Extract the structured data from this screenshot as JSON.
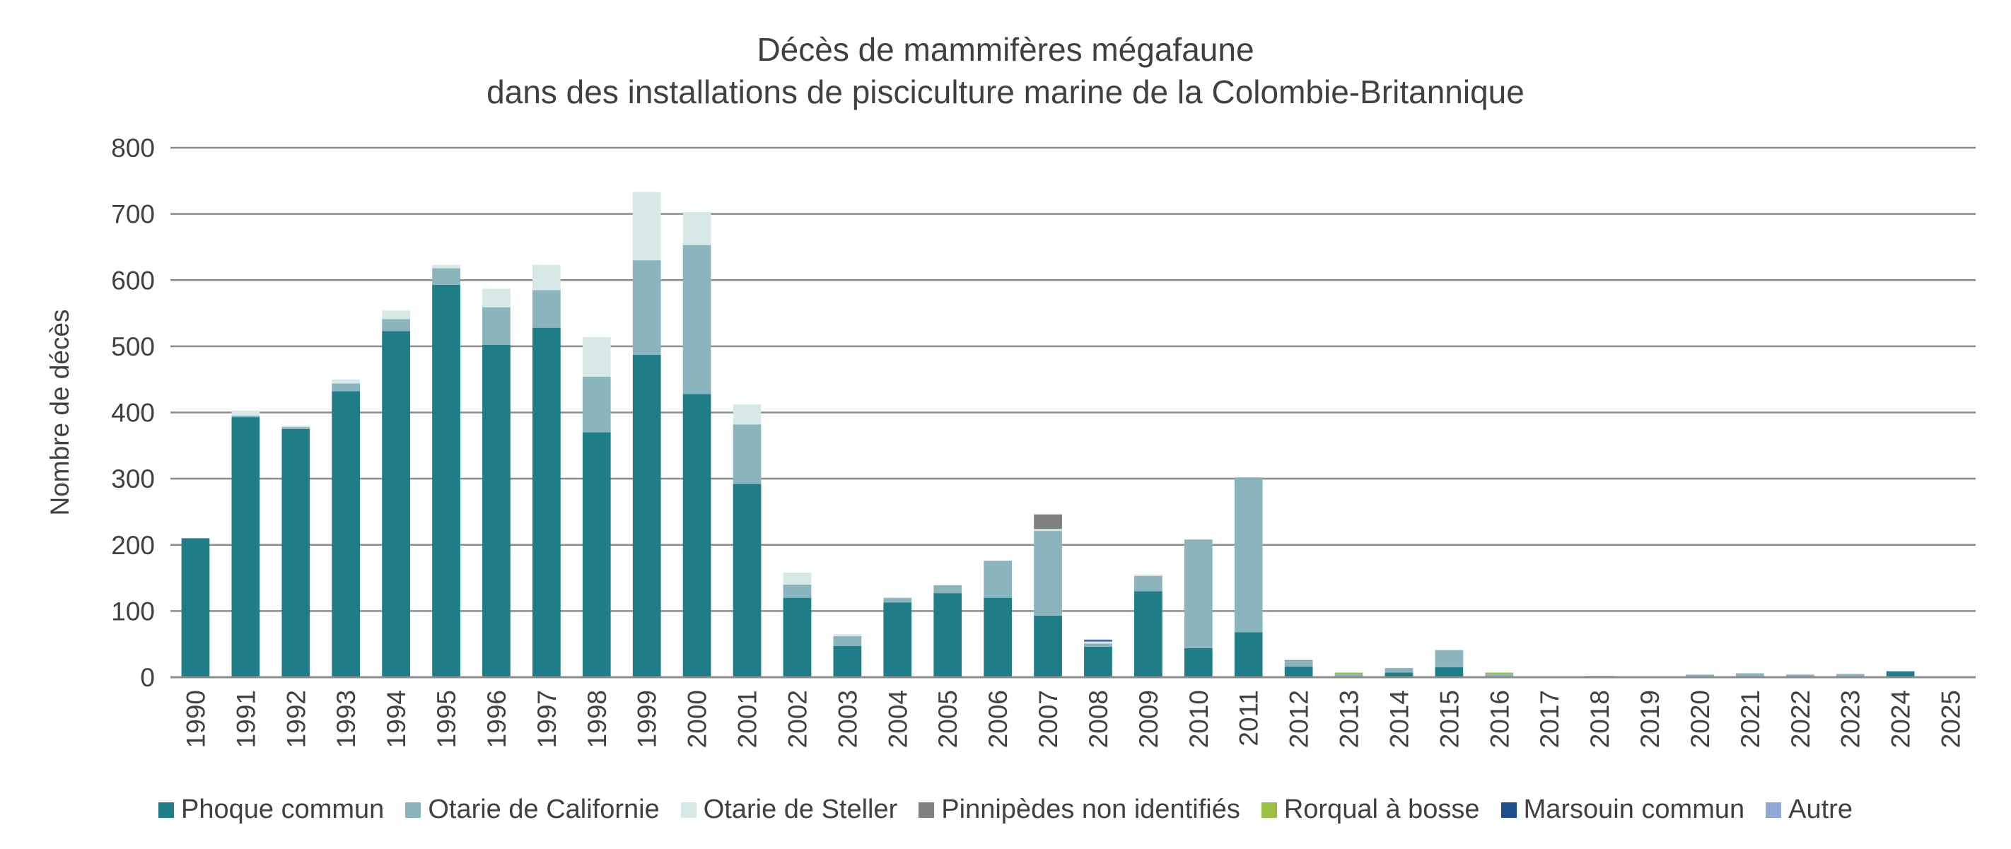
{
  "chart_data": {
    "type": "bar",
    "stacked": true,
    "title": "Décès de mammifères mégafaune",
    "subtitle": "dans des installations de pisciculture marine de la Colombie-Britannique",
    "xlabel": "",
    "ylabel": "Nombre de décès",
    "ylim": [
      0,
      800
    ],
    "yticks": [
      0,
      100,
      200,
      300,
      400,
      500,
      600,
      700,
      800
    ],
    "grid": true,
    "legend_position": "bottom",
    "categories": [
      "1990",
      "1991",
      "1992",
      "1993",
      "1994",
      "1995",
      "1996",
      "1997",
      "1998",
      "1999",
      "2000",
      "2001",
      "2002",
      "2003",
      "2004",
      "2005",
      "2006",
      "2007",
      "2008",
      "2009",
      "2010",
      "2011",
      "2012",
      "2013",
      "2014",
      "2015",
      "2016",
      "2017",
      "2018",
      "2019",
      "2020",
      "2021",
      "2022",
      "2023",
      "2024",
      "2025"
    ],
    "series": [
      {
        "name": "Phoque commun",
        "color": "#1e7d87",
        "values": [
          210,
          393,
          375,
          432,
          523,
          593,
          502,
          528,
          370,
          487,
          428,
          292,
          120,
          47,
          113,
          127,
          120,
          93,
          46,
          130,
          44,
          68,
          16,
          0,
          7,
          15,
          0,
          0,
          0,
          0,
          0,
          1,
          0,
          0,
          9,
          0
        ]
      },
      {
        "name": "Otarie de Californie",
        "color": "#8ab5bd",
        "values": [
          0,
          2,
          3,
          12,
          18,
          25,
          57,
          57,
          84,
          143,
          225,
          90,
          20,
          15,
          7,
          12,
          56,
          128,
          5,
          23,
          164,
          234,
          9,
          5,
          7,
          26,
          5,
          0,
          2,
          0,
          4,
          5,
          4,
          5,
          0,
          0
        ]
      },
      {
        "name": "Otarie de Steller",
        "color": "#d6e9e6",
        "values": [
          0,
          8,
          2,
          6,
          13,
          5,
          28,
          38,
          60,
          103,
          50,
          30,
          18,
          3,
          0,
          0,
          0,
          3,
          3,
          2,
          0,
          0,
          0,
          0,
          0,
          0,
          0,
          0,
          0,
          0,
          0,
          0,
          1,
          0,
          0,
          0
        ]
      },
      {
        "name": "Pinnipèdes non identifiés",
        "color": "#808080",
        "values": [
          0,
          0,
          0,
          0,
          0,
          0,
          0,
          0,
          0,
          0,
          0,
          0,
          0,
          0,
          0,
          0,
          0,
          22,
          0,
          0,
          0,
          0,
          1,
          0,
          0,
          0,
          0,
          0,
          0,
          0,
          0,
          0,
          0,
          0,
          0,
          0
        ]
      },
      {
        "name": "Rorqual à bosse",
        "color": "#9bc143",
        "values": [
          0,
          0,
          0,
          0,
          0,
          0,
          0,
          0,
          0,
          0,
          0,
          0,
          0,
          0,
          0,
          0,
          0,
          0,
          0,
          0,
          0,
          0,
          0,
          2,
          0,
          0,
          2,
          0,
          0,
          0,
          0,
          0,
          0,
          0,
          0,
          0
        ]
      },
      {
        "name": "Marsouin commun",
        "color": "#1f4e8c",
        "values": [
          0,
          0,
          0,
          0,
          0,
          0,
          0,
          0,
          0,
          0,
          0,
          0,
          0,
          0,
          0,
          0,
          0,
          0,
          2,
          0,
          0,
          0,
          0,
          0,
          0,
          0,
          0,
          0,
          0,
          0,
          0,
          0,
          0,
          0,
          0,
          0
        ]
      },
      {
        "name": "Autre",
        "color": "#8fa8d6",
        "values": [
          0,
          0,
          0,
          0,
          0,
          0,
          0,
          0,
          0,
          0,
          0,
          0,
          0,
          0,
          0,
          0,
          0,
          0,
          1,
          0,
          0,
          0,
          0,
          0,
          0,
          0,
          0,
          0,
          0,
          0,
          0,
          0,
          0,
          0,
          0,
          0
        ]
      }
    ]
  }
}
